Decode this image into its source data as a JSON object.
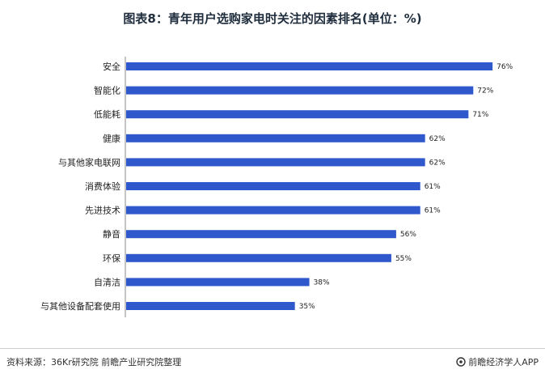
{
  "title": "图表8：青年用户选购家电时关注的因素排名(单位：%)",
  "source": "资料来源：36Kr研究院 前瞻产业研究院整理",
  "brand": "前瞻经济学人APP",
  "colors": {
    "bar": "#2f58cc"
  },
  "chart_data": {
    "type": "bar",
    "orientation": "horizontal",
    "title": "图表8：青年用户选购家电时关注的因素排名(单位：%)",
    "xlabel": "",
    "ylabel": "",
    "xlim": [
      0,
      80
    ],
    "grid": false,
    "legend": "none",
    "categories": [
      "安全",
      "智能化",
      "低能耗",
      "健康",
      "与其他家电联网",
      "消费体验",
      "先进技术",
      "静音",
      "环保",
      "自清洁",
      "与其他设备配套使用"
    ],
    "values": [
      76,
      72,
      71,
      62,
      62,
      61,
      61,
      56,
      55,
      38,
      35
    ],
    "value_labels": [
      "76%",
      "72%",
      "71%",
      "62%",
      "62%",
      "61%",
      "61%",
      "56%",
      "55%",
      "38%",
      "35%"
    ]
  }
}
